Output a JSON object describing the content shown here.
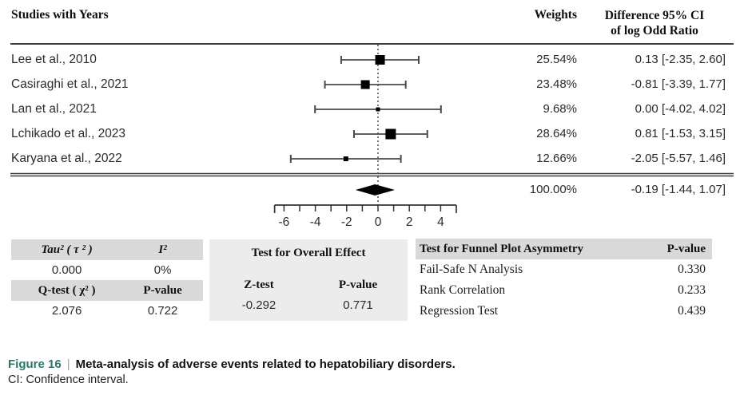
{
  "header": {
    "studies_label": "Studies with Years",
    "weights_label": "Weights",
    "difference_line1": "Difference 95% CI",
    "difference_line2": "of log Odd Ratio"
  },
  "chart_data": {
    "type": "forest",
    "x_axis": {
      "range": [
        -6.6,
        5.0
      ],
      "tick_integers": [
        -6,
        -5,
        -4,
        -3,
        -2,
        -1,
        0,
        1,
        2,
        3,
        4
      ],
      "tick_labels": [
        "-6",
        "-4",
        "-2",
        "0",
        "2",
        "4"
      ],
      "label_values": [
        -6,
        -4,
        -2,
        0,
        2,
        4
      ],
      "zero_reference_line": 0
    },
    "studies": [
      {
        "name": "Lee et al., 2010",
        "weight_pct": 25.54,
        "weight": "25.54%",
        "est": 0.13,
        "ci_lo": -2.35,
        "ci_hi": 2.6,
        "diff": "0.13 [-2.35, 2.60]"
      },
      {
        "name": "Casiraghi et al., 2021",
        "weight_pct": 23.48,
        "weight": "23.48%",
        "est": -0.81,
        "ci_lo": -3.39,
        "ci_hi": 1.77,
        "diff": "-0.81 [-3.39, 1.77]"
      },
      {
        "name": "Lan et al., 2021",
        "weight_pct": 9.68,
        "weight": "9.68%",
        "est": 0.0,
        "ci_lo": -4.02,
        "ci_hi": 4.02,
        "diff": "0.00 [-4.02, 4.02]"
      },
      {
        "name": "Lchikado et al., 2023",
        "weight_pct": 28.64,
        "weight": "28.64%",
        "est": 0.81,
        "ci_lo": -1.53,
        "ci_hi": 3.15,
        "diff": "0.81 [-1.53, 3.15]"
      },
      {
        "name": "Karyana et al., 2022",
        "weight_pct": 12.66,
        "weight": "12.66%",
        "est": -2.05,
        "ci_lo": -5.57,
        "ci_hi": 1.46,
        "diff": "-2.05 [-5.57, 1.46]"
      }
    ],
    "overall": {
      "weight_pct": 100.0,
      "weight": "100.00%",
      "est": -0.19,
      "ci_lo": -1.44,
      "ci_hi": 1.07,
      "diff": "-0.19 [-1.44, 1.07]"
    }
  },
  "stats": {
    "left": {
      "h1": [
        "Tau² ( τ ² )",
        "I²"
      ],
      "v1": [
        "0.000",
        "0%"
      ],
      "h2": [
        "Q-test ( χ² )",
        "P-value"
      ],
      "v2": [
        "2.076",
        "0.722"
      ]
    },
    "middle": {
      "title": "Test for Overall Effect",
      "h": [
        "Z-test",
        "P-value"
      ],
      "v": [
        "-0.292",
        "0.771"
      ]
    },
    "right": {
      "title": "Test for Funnel Plot Asymmetry",
      "pcol": "P-value",
      "rows": [
        [
          "Fail-Safe N Analysis",
          "0.330"
        ],
        [
          "Rank Correlation",
          "0.233"
        ],
        [
          "Regression Test",
          "0.439"
        ]
      ]
    }
  },
  "caption": {
    "fig": "Figure 16",
    "sep": "|",
    "title": "Meta-analysis of adverse events related to hepatobiliary disorders.",
    "note": "CI: Confidence interval."
  },
  "colors": {
    "caption_fig": "#2e756b",
    "header_gray": "#d9d9d9",
    "block_gray": "#ececec",
    "marker": "#000000",
    "line": "#4a4a4a",
    "rule": "#3f3f3f"
  }
}
